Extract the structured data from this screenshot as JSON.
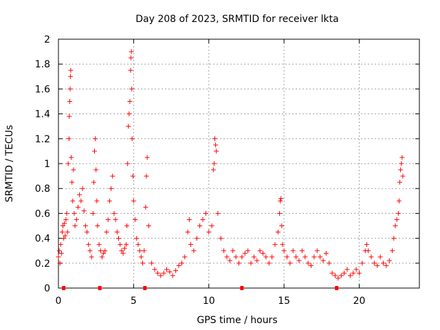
{
  "chart_data": {
    "type": "scatter",
    "title": "Day 208 of 2023, SRMTID for receiver lkta",
    "xlabel": "GPS time / hours",
    "ylabel": "SRMTID / TECUs",
    "xlim": [
      0,
      24
    ],
    "ylim": [
      0,
      2
    ],
    "xticks": [
      0,
      5,
      10,
      15,
      20
    ],
    "xtick_labels": [
      "0",
      "5",
      "10",
      "15",
      "20"
    ],
    "yticks": [
      0,
      0.2,
      0.4,
      0.6,
      0.8,
      1,
      1.2,
      1.4,
      1.6,
      1.8,
      2
    ],
    "ytick_labels": [
      "0",
      "0.2",
      "0.4",
      "0.6",
      "0.8",
      "1",
      "1.2",
      "1.4",
      "1.6",
      "1.8",
      "2"
    ],
    "grid": true,
    "marker": "+",
    "series": [
      {
        "name": "SRMTID",
        "color": "#ff0000",
        "points": [
          [
            0.0,
            0.25
          ],
          [
            0.05,
            0.3
          ],
          [
            0.1,
            0.2
          ],
          [
            0.15,
            0.35
          ],
          [
            0.2,
            0.28
          ],
          [
            0.25,
            0.45
          ],
          [
            0.3,
            0.5
          ],
          [
            0.35,
            0.4
          ],
          [
            0.4,
            0.52
          ],
          [
            0.45,
            0.42
          ],
          [
            0.5,
            0.55
          ],
          [
            0.55,
            0.6
          ],
          [
            0.6,
            0.45
          ],
          [
            0.65,
            1.0
          ],
          [
            0.7,
            1.2
          ],
          [
            0.72,
            1.38
          ],
          [
            0.75,
            1.5
          ],
          [
            0.78,
            1.6
          ],
          [
            0.8,
            1.7
          ],
          [
            0.82,
            1.75
          ],
          [
            0.85,
            1.05
          ],
          [
            0.9,
            0.85
          ],
          [
            0.95,
            0.7
          ],
          [
            1.0,
            0.95
          ],
          [
            1.05,
            0.6
          ],
          [
            1.1,
            0.5
          ],
          [
            1.2,
            0.55
          ],
          [
            1.3,
            0.65
          ],
          [
            1.4,
            0.75
          ],
          [
            1.5,
            0.7
          ],
          [
            1.6,
            0.8
          ],
          [
            1.7,
            0.62
          ],
          [
            1.8,
            0.5
          ],
          [
            1.9,
            0.45
          ],
          [
            2.0,
            0.35
          ],
          [
            2.1,
            0.3
          ],
          [
            2.2,
            0.25
          ],
          [
            2.3,
            0.6
          ],
          [
            2.35,
            0.85
          ],
          [
            2.4,
            1.1
          ],
          [
            2.45,
            1.2
          ],
          [
            2.5,
            0.95
          ],
          [
            2.55,
            0.7
          ],
          [
            2.6,
            0.5
          ],
          [
            2.7,
            0.35
          ],
          [
            2.8,
            0.3
          ],
          [
            2.9,
            0.25
          ],
          [
            3.0,
            0.28
          ],
          [
            3.1,
            0.3
          ],
          [
            3.2,
            0.45
          ],
          [
            3.3,
            0.55
          ],
          [
            3.4,
            0.7
          ],
          [
            3.5,
            0.8
          ],
          [
            3.6,
            0.9
          ],
          [
            3.7,
            0.6
          ],
          [
            3.8,
            0.55
          ],
          [
            3.9,
            0.45
          ],
          [
            4.0,
            0.4
          ],
          [
            4.1,
            0.35
          ],
          [
            4.2,
            0.3
          ],
          [
            4.3,
            0.28
          ],
          [
            4.4,
            0.32
          ],
          [
            4.5,
            0.35
          ],
          [
            4.55,
            0.5
          ],
          [
            4.6,
            1.0
          ],
          [
            4.65,
            1.3
          ],
          [
            4.7,
            1.4
          ],
          [
            4.75,
            1.5
          ],
          [
            4.8,
            1.75
          ],
          [
            4.82,
            1.85
          ],
          [
            4.85,
            1.9
          ],
          [
            4.88,
            1.6
          ],
          [
            4.9,
            1.2
          ],
          [
            4.95,
            0.9
          ],
          [
            5.0,
            0.7
          ],
          [
            5.1,
            0.55
          ],
          [
            5.2,
            0.4
          ],
          [
            5.3,
            0.35
          ],
          [
            5.4,
            0.3
          ],
          [
            5.5,
            0.25
          ],
          [
            5.6,
            0.2
          ],
          [
            5.7,
            0.3
          ],
          [
            5.8,
            0.65
          ],
          [
            5.85,
            0.9
          ],
          [
            5.9,
            1.05
          ],
          [
            6.0,
            0.5
          ],
          [
            6.2,
            0.2
          ],
          [
            6.4,
            0.15
          ],
          [
            6.6,
            0.12
          ],
          [
            6.8,
            0.1
          ],
          [
            7.0,
            0.12
          ],
          [
            7.2,
            0.15
          ],
          [
            7.4,
            0.13
          ],
          [
            7.6,
            0.1
          ],
          [
            7.8,
            0.14
          ],
          [
            8.0,
            0.18
          ],
          [
            8.2,
            0.2
          ],
          [
            8.4,
            0.25
          ],
          [
            8.6,
            0.45
          ],
          [
            8.7,
            0.55
          ],
          [
            8.8,
            0.35
          ],
          [
            9.0,
            0.3
          ],
          [
            9.2,
            0.4
          ],
          [
            9.4,
            0.5
          ],
          [
            9.6,
            0.55
          ],
          [
            9.8,
            0.6
          ],
          [
            10.0,
            0.45
          ],
          [
            10.2,
            0.5
          ],
          [
            10.3,
            0.95
          ],
          [
            10.35,
            1.0
          ],
          [
            10.4,
            1.2
          ],
          [
            10.45,
            1.15
          ],
          [
            10.5,
            1.1
          ],
          [
            10.6,
            0.6
          ],
          [
            10.8,
            0.4
          ],
          [
            11.0,
            0.3
          ],
          [
            11.2,
            0.25
          ],
          [
            11.4,
            0.22
          ],
          [
            11.6,
            0.3
          ],
          [
            11.8,
            0.25
          ],
          [
            12.0,
            0.2
          ],
          [
            12.2,
            0.25
          ],
          [
            12.4,
            0.28
          ],
          [
            12.6,
            0.3
          ],
          [
            12.8,
            0.2
          ],
          [
            13.0,
            0.25
          ],
          [
            13.2,
            0.22
          ],
          [
            13.4,
            0.3
          ],
          [
            13.6,
            0.28
          ],
          [
            13.8,
            0.25
          ],
          [
            14.0,
            0.2
          ],
          [
            14.2,
            0.25
          ],
          [
            14.4,
            0.35
          ],
          [
            14.6,
            0.45
          ],
          [
            14.7,
            0.6
          ],
          [
            14.75,
            0.7
          ],
          [
            14.8,
            0.72
          ],
          [
            14.85,
            0.5
          ],
          [
            14.9,
            0.35
          ],
          [
            15.0,
            0.3
          ],
          [
            15.2,
            0.25
          ],
          [
            15.4,
            0.2
          ],
          [
            15.6,
            0.3
          ],
          [
            15.8,
            0.25
          ],
          [
            16.0,
            0.22
          ],
          [
            16.2,
            0.3
          ],
          [
            16.4,
            0.25
          ],
          [
            16.6,
            0.2
          ],
          [
            16.8,
            0.18
          ],
          [
            17.0,
            0.25
          ],
          [
            17.2,
            0.3
          ],
          [
            17.4,
            0.25
          ],
          [
            17.6,
            0.22
          ],
          [
            17.8,
            0.28
          ],
          [
            18.0,
            0.2
          ],
          [
            18.2,
            0.12
          ],
          [
            18.4,
            0.1
          ],
          [
            18.6,
            0.08
          ],
          [
            18.8,
            0.1
          ],
          [
            19.0,
            0.12
          ],
          [
            19.2,
            0.15
          ],
          [
            19.4,
            0.1
          ],
          [
            19.6,
            0.12
          ],
          [
            19.8,
            0.15
          ],
          [
            20.0,
            0.12
          ],
          [
            20.2,
            0.2
          ],
          [
            20.4,
            0.3
          ],
          [
            20.5,
            0.35
          ],
          [
            20.6,
            0.3
          ],
          [
            20.8,
            0.25
          ],
          [
            21.0,
            0.2
          ],
          [
            21.2,
            0.18
          ],
          [
            21.4,
            0.25
          ],
          [
            21.6,
            0.2
          ],
          [
            21.8,
            0.18
          ],
          [
            22.0,
            0.22
          ],
          [
            22.2,
            0.3
          ],
          [
            22.3,
            0.4
          ],
          [
            22.4,
            0.5
          ],
          [
            22.5,
            0.55
          ],
          [
            22.6,
            0.6
          ],
          [
            22.65,
            0.7
          ],
          [
            22.7,
            0.85
          ],
          [
            22.75,
            0.95
          ],
          [
            22.8,
            1.0
          ],
          [
            22.85,
            1.05
          ],
          [
            22.9,
            0.9
          ]
        ]
      }
    ],
    "zero_markers_x": [
      0.35,
      2.75,
      5.75,
      12.2,
      18.5
    ]
  }
}
